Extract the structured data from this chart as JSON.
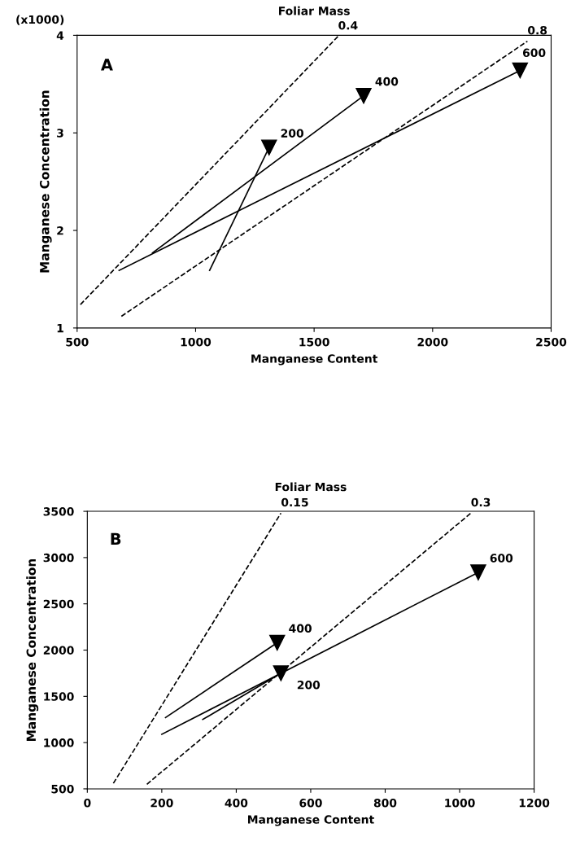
{
  "chart_data": [
    {
      "type": "line",
      "xlabel": "Manganese Content",
      "ylabel": "Manganese Concentration",
      "x2label": "Foliar Mass",
      "xlim": [
        500,
        2500
      ],
      "xticks": [
        500,
        1000,
        1500,
        2000,
        2500
      ],
      "ylim": [
        1,
        4
      ],
      "yticks": [
        1,
        2,
        3,
        4
      ],
      "grid": false,
      "legend": false,
      "annotations": [
        "(x1000)",
        "A",
        {
          "text": "0.4",
          "x": 1601,
          "y": 3.99
        },
        {
          "text": "0.8",
          "x": 2400,
          "y": 3.94
        },
        {
          "text": "200",
          "x": 1310,
          "y": 2.85
        },
        {
          "text": "400",
          "x": 1709,
          "y": 3.38
        },
        {
          "text": "600",
          "x": 2369,
          "y": 3.64
        }
      ],
      "series": [
        {
          "x": [
            514,
            1601
          ],
          "values": [
            1.24,
            3.99
          ],
          "color": "#000000",
          "line_style": "dashed",
          "marker": "none"
        },
        {
          "x": [
            687,
            2400
          ],
          "values": [
            1.12,
            3.94
          ],
          "color": "#000000",
          "line_style": "dashed",
          "marker": "none"
        },
        {
          "x": [
            1059,
            1310
          ],
          "values": [
            1.59,
            2.85
          ],
          "color": "#000000",
          "line_style": "solid",
          "marker": "triangle"
        },
        {
          "x": [
            818,
            1709
          ],
          "values": [
            1.77,
            3.38
          ],
          "color": "#000000",
          "line_style": "solid",
          "marker": "triangle"
        },
        {
          "x": [
            677,
            2369
          ],
          "values": [
            1.59,
            3.64
          ],
          "color": "#000000",
          "line_style": "solid",
          "marker": "triangle"
        }
      ]
    },
    {
      "type": "line",
      "xlabel": "Manganese Content",
      "ylabel": "Manganese Concentration",
      "x2label": "Foliar Mass",
      "xlim": [
        0,
        1200
      ],
      "xticks": [
        0,
        200,
        400,
        600,
        800,
        1000,
        1200
      ],
      "ylim": [
        500,
        3500
      ],
      "yticks": [
        500,
        1000,
        1500,
        2000,
        2500,
        3000,
        3500
      ],
      "grid": false,
      "legend": false,
      "annotations": [
        "B",
        {
          "text": "0.15",
          "x": 520,
          "y": 3480
        },
        {
          "text": "0.3",
          "x": 1030,
          "y": 3480
        },
        {
          "text": "200",
          "x": 520,
          "y": 1750
        },
        {
          "text": "400",
          "x": 510,
          "y": 2080
        },
        {
          "text": "600",
          "x": 1050,
          "y": 2840
        }
      ],
      "series": [
        {
          "x": [
            70,
            520
          ],
          "values": [
            560,
            3480
          ],
          "color": "#000000",
          "line_style": "dashed",
          "marker": "none"
        },
        {
          "x": [
            160,
            1030
          ],
          "values": [
            550,
            3480
          ],
          "color": "#000000",
          "line_style": "dashed",
          "marker": "none"
        },
        {
          "x": [
            310,
            520
          ],
          "values": [
            1250,
            1750
          ],
          "color": "#000000",
          "line_style": "solid",
          "marker": "triangle"
        },
        {
          "x": [
            210,
            510
          ],
          "values": [
            1270,
            2080
          ],
          "color": "#000000",
          "line_style": "solid",
          "marker": "triangle"
        },
        {
          "x": [
            200,
            1050
          ],
          "values": [
            1090,
            2840
          ],
          "color": "#000000",
          "line_style": "solid",
          "marker": "triangle"
        }
      ]
    }
  ]
}
